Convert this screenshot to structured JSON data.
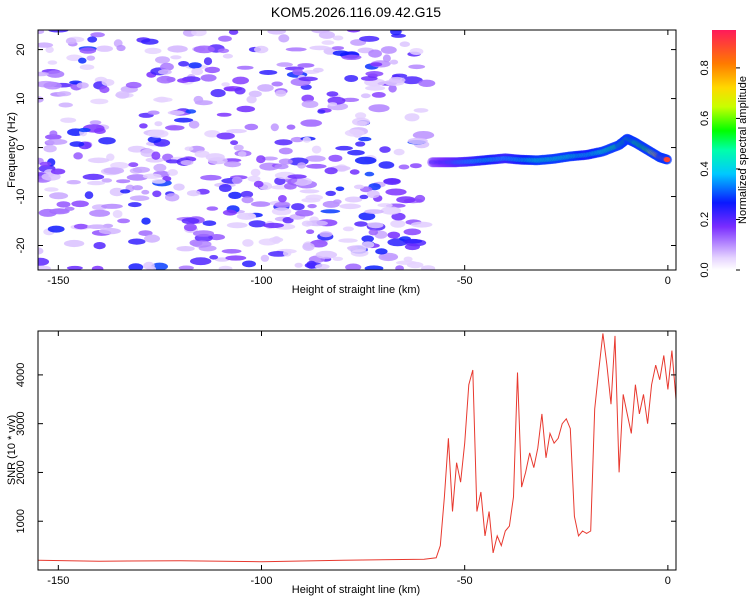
{
  "title": "KOM5.2026.116.09.42.G15",
  "colors": {
    "snr_line": "#e8392f",
    "axis": "#000000",
    "background": "#ffffff"
  },
  "chart_data": [
    {
      "type": "heatmap",
      "xlabel": "Height of straight line (km)",
      "ylabel": "Frequency (Hz)",
      "xlim": [
        -155,
        2
      ],
      "ylim": [
        -25,
        24
      ],
      "xticks": [
        -150,
        -100,
        -50,
        0
      ],
      "yticks": [
        -20,
        -10,
        0,
        10,
        20
      ],
      "xtick_labels": [
        "-150",
        "-100",
        "-50",
        "0"
      ],
      "ytick_labels": [
        "-20",
        "-10",
        "0",
        "10",
        "20"
      ],
      "colorbar": {
        "label": "Normalized spectral amplitude",
        "range": [
          0,
          0.95
        ],
        "ticks": [
          0.0,
          0.2,
          0.4,
          0.6,
          0.8
        ],
        "tick_labels": [
          "0.0",
          "0.2",
          "0.4",
          "0.6",
          "0.8"
        ]
      },
      "noise_region_km": [
        -155,
        -59
      ],
      "signal_track": {
        "x": [
          -58,
          -55,
          -52,
          -48,
          -44,
          -40,
          -36,
          -32,
          -28,
          -24,
          -20,
          -16,
          -12,
          -10,
          -8,
          -5,
          -2,
          0
        ],
        "freq": [
          -3,
          -3,
          -3,
          -2.8,
          -2.5,
          -2.2,
          -2.5,
          -2.6,
          -2.3,
          -1.8,
          -1.5,
          -0.8,
          0.5,
          1.8,
          1,
          -0.5,
          -2,
          -2.5
        ],
        "amp": [
          0.25,
          0.3,
          0.35,
          0.4,
          0.45,
          0.4,
          0.45,
          0.5,
          0.5,
          0.5,
          0.45,
          0.5,
          0.55,
          0.6,
          0.55,
          0.6,
          0.85,
          0.95
        ]
      }
    },
    {
      "type": "line",
      "xlabel": "Height of straight line (km)",
      "ylabel": "SNR (10 * v/v)",
      "xlim": [
        -155,
        2
      ],
      "ylim": [
        0,
        4900
      ],
      "xticks": [
        -150,
        -100,
        -50,
        0
      ],
      "yticks": [
        1000,
        2000,
        3000,
        4000
      ],
      "xtick_labels": [
        "-150",
        "-100",
        "-50",
        "0"
      ],
      "ytick_labels": [
        "1000",
        "2000",
        "3000",
        "4000"
      ],
      "series": [
        {
          "name": "SNR",
          "x": [
            -155,
            -140,
            -120,
            -100,
            -80,
            -60,
            -57,
            -56,
            -55,
            -54,
            -53,
            -52,
            -51,
            -50,
            -49,
            -48,
            -47,
            -46,
            -45,
            -44,
            -43,
            -42,
            -41,
            -40,
            -39,
            -38,
            -37,
            -36,
            -35,
            -34,
            -33,
            -32,
            -31,
            -30,
            -29,
            -28,
            -27,
            -26,
            -25,
            -24,
            -23,
            -22,
            -21,
            -20,
            -19,
            -18,
            -17,
            -16,
            -15,
            -14,
            -13,
            -12,
            -11,
            -10,
            -9,
            -8,
            -7,
            -6,
            -5,
            -4,
            -3,
            -2,
            -1,
            0,
            1,
            2
          ],
          "y": [
            200,
            180,
            190,
            170,
            200,
            220,
            250,
            500,
            1500,
            2700,
            1200,
            2200,
            1800,
            2600,
            3800,
            4100,
            1200,
            1600,
            700,
            1200,
            350,
            700,
            500,
            800,
            900,
            1500,
            4050,
            1700,
            2000,
            2400,
            2100,
            2500,
            3200,
            2300,
            2800,
            2600,
            2700,
            3000,
            3100,
            2900,
            1100,
            700,
            800,
            750,
            800,
            3300,
            4100,
            4850,
            4200,
            3400,
            4800,
            2000,
            3600,
            3200,
            2800,
            3800,
            3200,
            3600,
            3000,
            3800,
            4200,
            3900,
            4400,
            3700,
            4500,
            3500
          ]
        }
      ]
    }
  ]
}
